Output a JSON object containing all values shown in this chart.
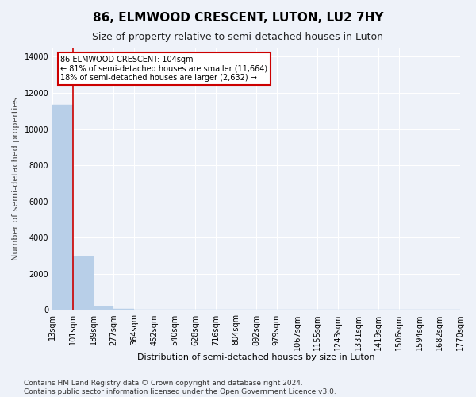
{
  "title": "86, ELMWOOD CRESCENT, LUTON, LU2 7HY",
  "subtitle": "Size of property relative to semi-detached houses in Luton",
  "xlabel": "Distribution of semi-detached houses by size in Luton",
  "ylabel": "Number of semi-detached properties",
  "annotation_text_line1": "86 ELMWOOD CRESCENT: 104sqm",
  "annotation_text_line2": "← 81% of semi-detached houses are smaller (11,664)",
  "annotation_text_line3": "18% of semi-detached houses are larger (2,632) →",
  "footer_line1": "Contains HM Land Registry data © Crown copyright and database right 2024.",
  "footer_line2": "Contains public sector information licensed under the Open Government Licence v3.0.",
  "bin_labels": [
    "13sqm",
    "101sqm",
    "189sqm",
    "277sqm",
    "364sqm",
    "452sqm",
    "540sqm",
    "628sqm",
    "716sqm",
    "804sqm",
    "892sqm",
    "979sqm",
    "1067sqm",
    "1155sqm",
    "1243sqm",
    "1331sqm",
    "1419sqm",
    "1506sqm",
    "1594sqm",
    "1682sqm",
    "1770sqm"
  ],
  "bar_heights": [
    11350,
    2950,
    200,
    50,
    10,
    5,
    3,
    2,
    1,
    1,
    1,
    0,
    0,
    0,
    0,
    0,
    0,
    0,
    0,
    0
  ],
  "property_bin_index": 1,
  "bar_color": "#b8cfe8",
  "bar_edgecolor": "#b8cfe8",
  "vline_color": "#cc0000",
  "annotation_box_edgecolor": "#cc0000",
  "annotation_box_facecolor": "#ffffff",
  "background_color": "#eef2f9",
  "plot_bg_color": "#eef2f9",
  "ylim": [
    0,
    14500
  ],
  "yticks": [
    0,
    2000,
    4000,
    6000,
    8000,
    10000,
    12000,
    14000
  ],
  "grid_color": "#ffffff",
  "title_fontsize": 11,
  "subtitle_fontsize": 9,
  "ylabel_fontsize": 8,
  "xlabel_fontsize": 8,
  "tick_fontsize": 7,
  "footer_fontsize": 6.5
}
